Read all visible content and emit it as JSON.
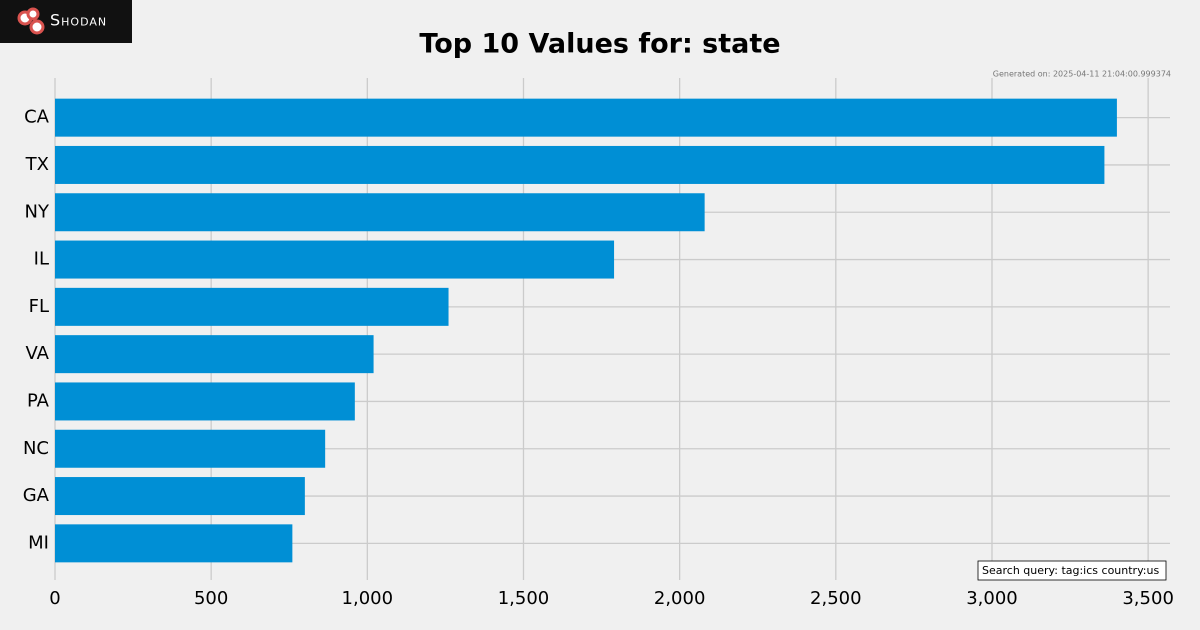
{
  "brand": "Shodan",
  "chart_data": {
    "type": "barh",
    "title": "Top 10 Values for: state",
    "generated": "Generated on: 2025-04-11 21:04:00.999374",
    "search_query": "Search query: tag:ics country:us",
    "categories": [
      "CA",
      "TX",
      "NY",
      "IL",
      "FL",
      "VA",
      "PA",
      "NC",
      "GA",
      "MI"
    ],
    "values": [
      3400,
      3360,
      2080,
      1790,
      1260,
      1020,
      960,
      865,
      800,
      760
    ],
    "color": "#008fd5",
    "xlim": [
      0,
      3570
    ],
    "xticks": [
      0,
      500,
      {
        "value": 1000,
        "label": "1,000"
      },
      {
        "value": 1500,
        "label": "1,500"
      },
      {
        "value": 2000,
        "label": "2,000"
      },
      {
        "value": 2500,
        "label": "2,500"
      },
      {
        "value": 3000,
        "label": "3,000"
      },
      {
        "value": 3500,
        "label": "3,500"
      }
    ],
    "grid": true
  }
}
